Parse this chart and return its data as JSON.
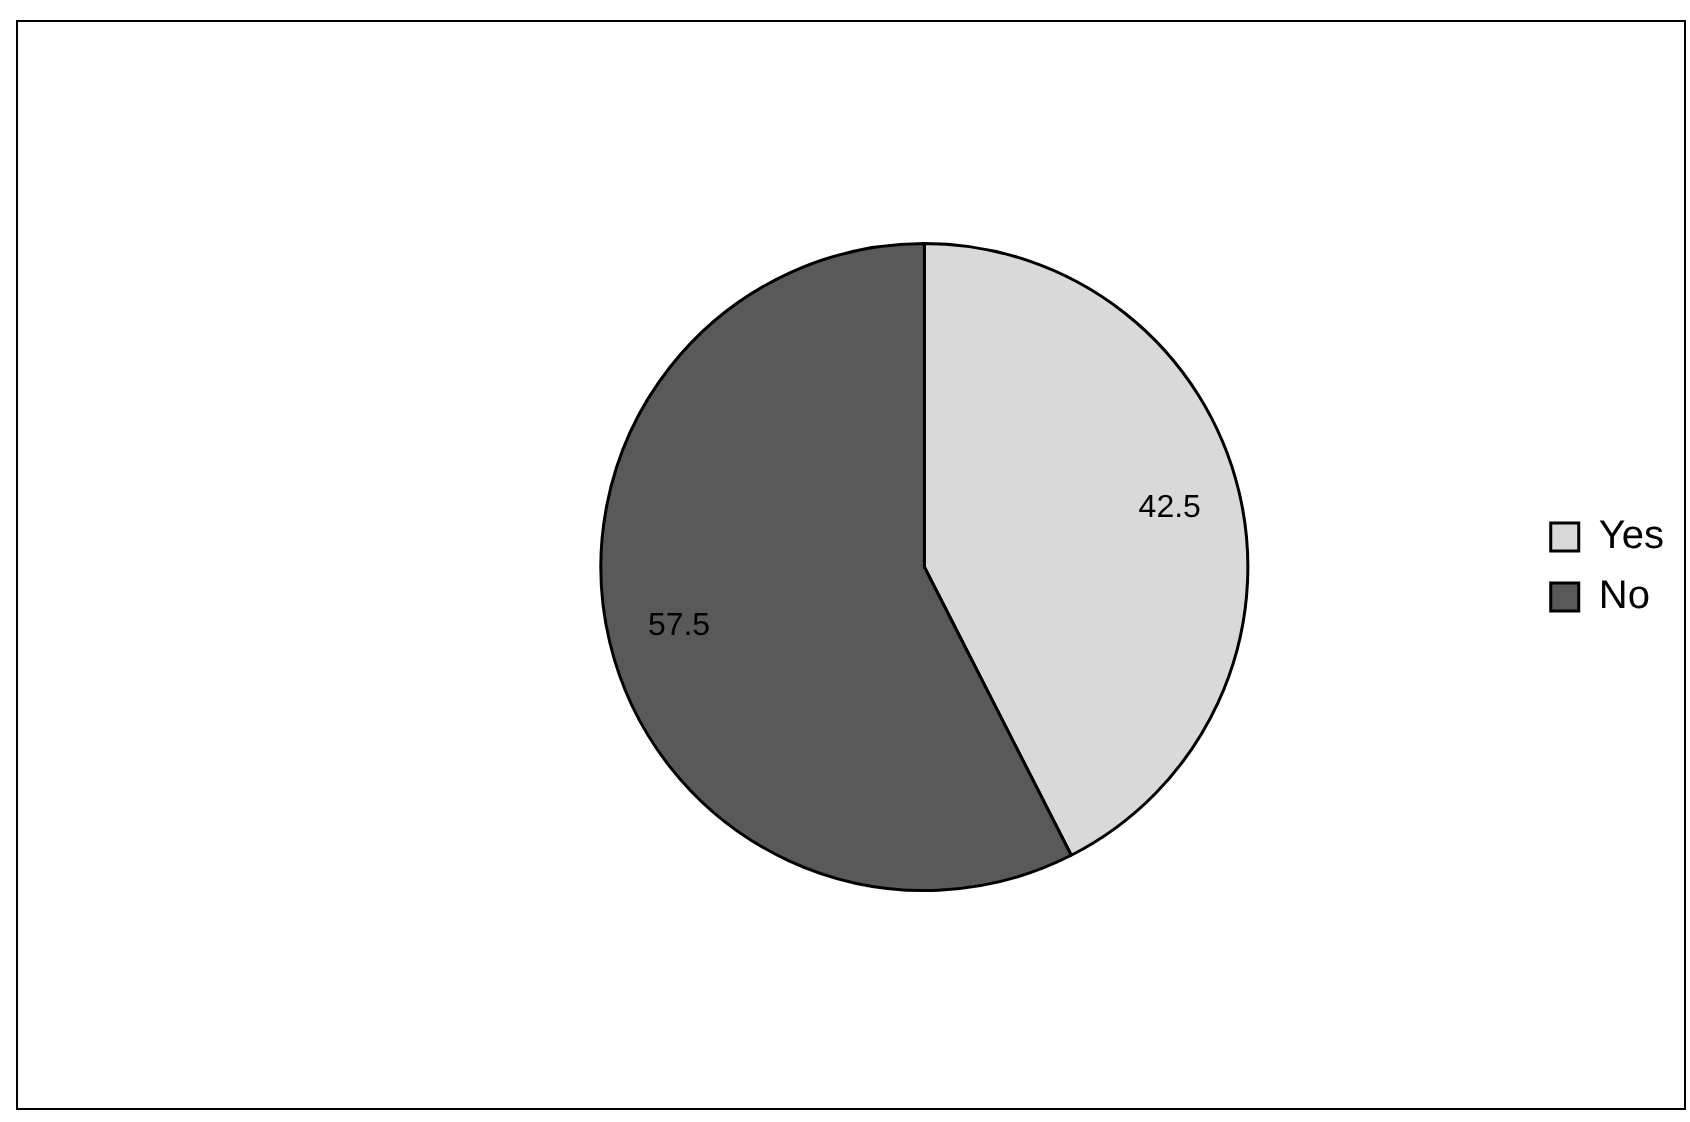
{
  "chart_data": {
    "type": "pie",
    "categories": [
      "Yes",
      "No"
    ],
    "values": [
      42.5,
      57.5
    ],
    "colors": [
      "#d9d9d9",
      "#595959"
    ],
    "data_labels": true,
    "legend": "right"
  }
}
